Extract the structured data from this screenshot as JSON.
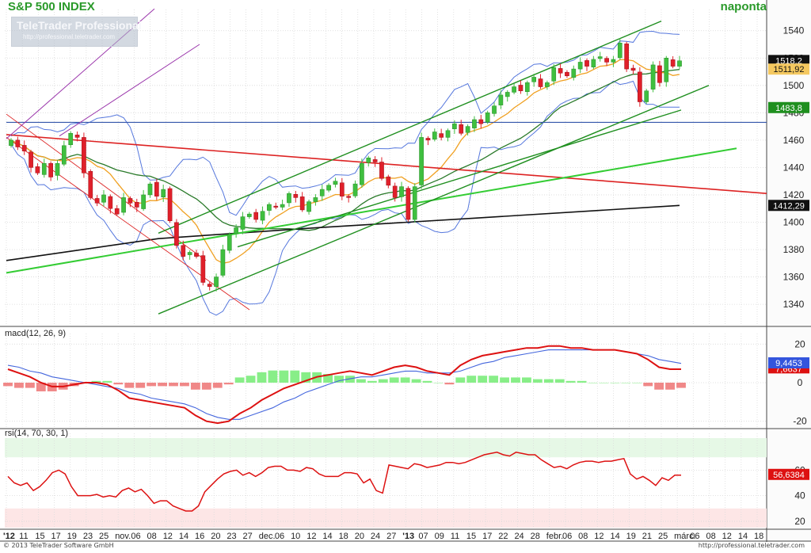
{
  "header": {
    "title": "S&P 500 INDEX",
    "period": "naponta",
    "watermark_name": "TeleTrader Professional",
    "watermark_url": "http://professional.teletrader.com"
  },
  "footer": {
    "copyright": "© 2013 TeleTrader Software GmbH",
    "url": "http://professional.teletrader.com"
  },
  "colors": {
    "up": "#3fbf3f",
    "down": "#e0202a",
    "trend_green": "#1f8f1f",
    "trend_lightgreen": "#33cc33",
    "trend_red": "#dd2222",
    "trend_purple": "#9933aa",
    "horizontal_blue": "#3355aa",
    "ma_orange": "#f0a020",
    "ma_darkgreen": "#2a7a2a",
    "ma_black": "#111111",
    "bollinger": "#5577dd",
    "macd_line": "#dd1111",
    "signal_line": "#4466dd",
    "hist_pos": "#88ee88",
    "hist_neg": "#f08888",
    "rsi_line": "#dd1111",
    "rsi_over": "#e6f8e6",
    "rsi_under": "#fde6e6"
  },
  "chart_data": [
    {
      "type": "candlestick",
      "title": "S&P 500 INDEX",
      "period": "naponta",
      "ylim": [
        1325,
        1552
      ],
      "yticks": [
        1340,
        1360,
        1380,
        1400,
        1420,
        1440,
        1460,
        1480,
        1500,
        1520,
        1540
      ],
      "x_labels": [
        "'12",
        "11",
        "15",
        "17",
        "19",
        "23",
        "25",
        "nov.",
        "06",
        "08",
        "12",
        "14",
        "16",
        "20",
        "23",
        "27",
        "dec.",
        "06",
        "10",
        "12",
        "14",
        "18",
        "20",
        "24",
        "27",
        "'13",
        "07",
        "09",
        "11",
        "15",
        "17",
        "22",
        "24",
        "28",
        "febr.",
        "06",
        "08",
        "12",
        "14",
        "19",
        "21",
        "25",
        "márc.",
        "06",
        "08",
        "12",
        "14",
        "18"
      ],
      "grid": true,
      "closes": [
        1460,
        1455,
        1452,
        1440,
        1436,
        1443,
        1433,
        1443,
        1456,
        1465,
        1462,
        1436,
        1418,
        1414,
        1420,
        1410,
        1406,
        1418,
        1414,
        1411,
        1420,
        1428,
        1419,
        1424,
        1401,
        1383,
        1375,
        1378,
        1375,
        1356,
        1353,
        1360,
        1380,
        1391,
        1396,
        1404,
        1406,
        1402,
        1408,
        1413,
        1411,
        1413,
        1421,
        1418,
        1409,
        1415,
        1418,
        1424,
        1427,
        1430,
        1419,
        1418,
        1428,
        1443,
        1447,
        1444,
        1432,
        1427,
        1418,
        1426,
        1402,
        1426,
        1462,
        1460,
        1466,
        1462,
        1467,
        1472,
        1465,
        1470,
        1475,
        1472,
        1480,
        1485,
        1493,
        1495,
        1499,
        1496,
        1502,
        1506,
        1499,
        1502,
        1513,
        1509,
        1507,
        1512,
        1517,
        1514,
        1519,
        1521,
        1517,
        1519,
        1531,
        1512,
        1511,
        1488,
        1496,
        1515,
        1502,
        1520,
        1514,
        1518
      ],
      "series": [
        {
          "name": "",
          "value": 1511.92
        },
        {
          "name": "",
          "value": 1483.8
        },
        {
          "name": "",
          "value": 1412.29
        },
        {
          "name": "",
          "value": 1518.2
        }
      ]
    },
    {
      "type": "line",
      "title": "macd(12, 26, 9)",
      "ylim": [
        -23,
        23
      ],
      "yticks": [
        -20,
        0,
        20
      ],
      "series": [
        {
          "name": "macd",
          "values": [
            7,
            5,
            3,
            0,
            -2,
            -2,
            -1,
            0,
            0,
            -1,
            -4,
            -8,
            -9,
            -10,
            -11,
            -12,
            -13,
            -17,
            -20,
            -21,
            -20,
            -16,
            -13,
            -9,
            -6,
            -3,
            -1,
            1,
            3,
            4,
            5,
            6,
            5,
            4,
            6,
            8,
            9,
            8,
            6,
            5,
            4,
            9,
            12,
            14,
            15,
            16,
            17,
            18,
            18,
            19,
            19,
            18,
            18,
            17,
            17,
            17,
            16,
            15,
            12,
            8,
            7,
            7
          ]
        },
        {
          "name": "signal",
          "values": [
            9,
            8,
            6,
            5,
            3,
            2,
            1,
            0,
            -1,
            -2,
            -3,
            -5,
            -6,
            -8,
            -9,
            -10,
            -11,
            -13,
            -16,
            -18,
            -19,
            -19,
            -17,
            -15,
            -13,
            -10,
            -8,
            -5,
            -3,
            -1,
            1,
            2,
            3,
            3,
            4,
            5,
            6,
            6,
            5,
            5,
            5,
            6,
            8,
            10,
            11,
            13,
            14,
            15,
            16,
            17,
            17,
            17,
            17,
            17,
            17,
            17,
            16,
            15,
            14,
            12,
            11,
            10
          ]
        },
        {
          "name": "",
          "value": 9.4453
        },
        {
          "name": "",
          "value": 7.6637
        }
      ]
    },
    {
      "type": "line",
      "title": "rsi(14, 70, 30, 1)",
      "ylim": [
        15,
        85
      ],
      "yticks": [
        20,
        40,
        60
      ],
      "overbought": 70,
      "oversold": 30,
      "series": [
        {
          "name": "rsi",
          "values": [
            55,
            50,
            48,
            50,
            44,
            47,
            52,
            58,
            60,
            57,
            47,
            40,
            40,
            40,
            41,
            39,
            40,
            39,
            44,
            46,
            43,
            45,
            40,
            34,
            36,
            36,
            32,
            30,
            28,
            28,
            32,
            43,
            48,
            53,
            57,
            59,
            60,
            56,
            58,
            55,
            58,
            62,
            63,
            63,
            60,
            60,
            59,
            62,
            61,
            57,
            55,
            55,
            55,
            58,
            58,
            57,
            50,
            53,
            44,
            42,
            64,
            63,
            62,
            61,
            65,
            64,
            62,
            63,
            64,
            66,
            66,
            65,
            66,
            68,
            70,
            72,
            73,
            74,
            72,
            71,
            74,
            73,
            72,
            72,
            68,
            65,
            62,
            63,
            61,
            64,
            66,
            67,
            67,
            66,
            67,
            67,
            68,
            69,
            57,
            53,
            55,
            52,
            48,
            54,
            52,
            56,
            56
          ]
        },
        {
          "name": "",
          "value": 56.6384
        }
      ]
    }
  ]
}
